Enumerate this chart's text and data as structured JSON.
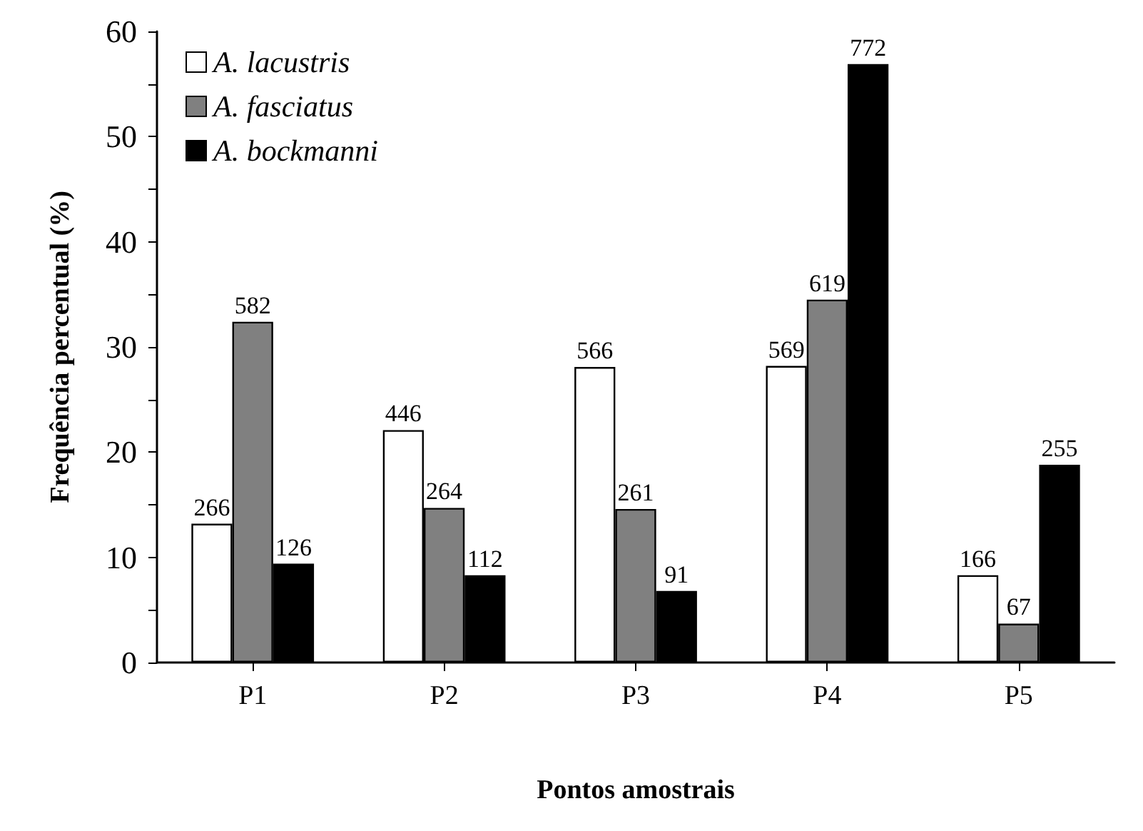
{
  "chart_data": {
    "type": "bar",
    "xlabel": "Pontos amostrais",
    "ylabel": "Frequência percentual (%)",
    "categories": [
      "P1",
      "P2",
      "P3",
      "P4",
      "P5"
    ],
    "series": [
      {
        "name": "A. lacustris",
        "color": "#ffffff",
        "values": [
          13.2,
          22.1,
          28.1,
          28.2,
          8.3
        ]
      },
      {
        "name": "A. fasciatus",
        "color": "#808080",
        "values": [
          32.4,
          14.7,
          14.6,
          34.5,
          3.7
        ]
      },
      {
        "name": "A. bockmanni",
        "color": "#000000",
        "values": [
          9.4,
          8.3,
          6.8,
          56.9,
          18.8
        ]
      }
    ],
    "annotations": [
      "266",
      "582",
      "126",
      "446",
      "264",
      "112",
      "566",
      "261",
      "91",
      "569",
      "619",
      "772",
      "166",
      "67",
      "255"
    ],
    "ylim": [
      0,
      60
    ],
    "yticks": [
      0,
      {
        "value": 5,
        "label": null
      },
      10,
      {
        "value": 15,
        "label": null
      },
      20,
      {
        "value": 25,
        "label": null
      },
      30,
      {
        "value": 35,
        "label": null
      },
      40,
      {
        "value": 45,
        "label": null
      },
      50,
      {
        "value": 55,
        "label": null
      },
      60
    ],
    "grid": false,
    "legend": "top left"
  }
}
